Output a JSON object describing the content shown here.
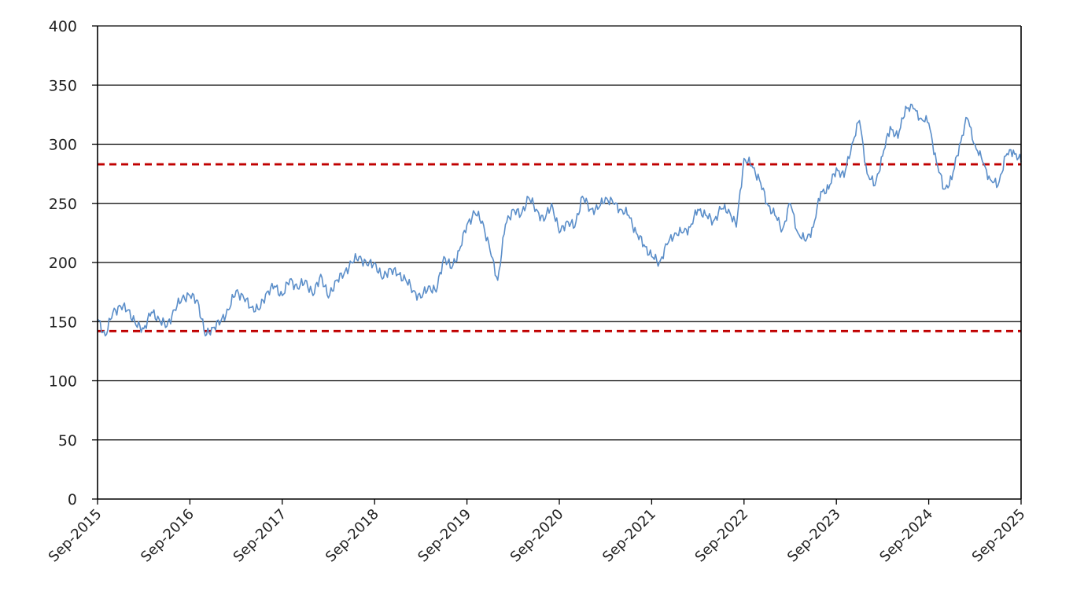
{
  "chart_data": {
    "type": "line",
    "title": "",
    "xlabel": "",
    "ylabel": "",
    "grid": true,
    "legend": "none",
    "ylim": [
      0,
      400
    ],
    "yticks": [
      0,
      50,
      100,
      150,
      200,
      250,
      300,
      350,
      400
    ],
    "ytick_labels": [
      "0",
      "50",
      "100",
      "150",
      "200",
      "250",
      "300",
      "350",
      "400"
    ],
    "xlim": [
      "2015-09",
      "2025-09"
    ],
    "xtick_labels": [
      "Sep-2015",
      "Sep-2016",
      "Sep-2017",
      "Sep-2018",
      "Sep-2019",
      "Sep-2020",
      "Sep-2021",
      "Sep-2022",
      "Sep-2023",
      "Sep-2024",
      "Sep-2025"
    ],
    "colors": {
      "series": "#5b8ec9",
      "reference": "#c00000",
      "grid": "#000000"
    },
    "series": [
      {
        "x": [
          "2015-09",
          "2015-10",
          "2015-11",
          "2015-12",
          "2016-01",
          "2016-02",
          "2016-03",
          "2016-04",
          "2016-05",
          "2016-06",
          "2016-07",
          "2016-08",
          "2016-09",
          "2016-10",
          "2016-11",
          "2016-12",
          "2017-01",
          "2017-02",
          "2017-03",
          "2017-04",
          "2017-05",
          "2017-06",
          "2017-07",
          "2017-08",
          "2017-09",
          "2017-10",
          "2017-11",
          "2017-12",
          "2018-01",
          "2018-02",
          "2018-03",
          "2018-04",
          "2018-05",
          "2018-06",
          "2018-07",
          "2018-08",
          "2018-09",
          "2018-10",
          "2018-11",
          "2018-12",
          "2019-01",
          "2019-02",
          "2019-03",
          "2019-04",
          "2019-05",
          "2019-06",
          "2019-07",
          "2019-08",
          "2019-09",
          "2019-10",
          "2019-11",
          "2019-12",
          "2020-01",
          "2020-02",
          "2020-03",
          "2020-04",
          "2020-05",
          "2020-06",
          "2020-07",
          "2020-08",
          "2020-09",
          "2020-10",
          "2020-11",
          "2020-12",
          "2021-01",
          "2021-02",
          "2021-03",
          "2021-04",
          "2021-05",
          "2021-06",
          "2021-07",
          "2021-08",
          "2021-09",
          "2021-10",
          "2021-11",
          "2021-12",
          "2022-01",
          "2022-02",
          "2022-03",
          "2022-04",
          "2022-05",
          "2022-06",
          "2022-07",
          "2022-08",
          "2022-09",
          "2022-10",
          "2022-11",
          "2022-12",
          "2023-01",
          "2023-02",
          "2023-03",
          "2023-04",
          "2023-05",
          "2023-06",
          "2023-07",
          "2023-08",
          "2023-09",
          "2023-10",
          "2023-11",
          "2023-12",
          "2024-01",
          "2024-02",
          "2024-03",
          "2024-04",
          "2024-05",
          "2024-06",
          "2024-07",
          "2024-08",
          "2024-09",
          "2024-10",
          "2024-11",
          "2024-12",
          "2025-01",
          "2025-02",
          "2025-03",
          "2025-04",
          "2025-05",
          "2025-06",
          "2025-07",
          "2025-08",
          "2025-09"
        ],
        "values": [
          152,
          138,
          158,
          163,
          160,
          147,
          144,
          158,
          152,
          146,
          160,
          170,
          172,
          168,
          138,
          145,
          150,
          160,
          176,
          170,
          162,
          160,
          175,
          180,
          172,
          186,
          178,
          185,
          172,
          190,
          170,
          185,
          190,
          200,
          205,
          198,
          200,
          186,
          195,
          190,
          186,
          176,
          170,
          180,
          175,
          205,
          195,
          210,
          232,
          242,
          235,
          210,
          185,
          232,
          245,
          240,
          255,
          245,
          235,
          250,
          225,
          235,
          230,
          256,
          245,
          245,
          255,
          250,
          245,
          240,
          225,
          215,
          205,
          200,
          215,
          225,
          225,
          230,
          245,
          240,
          235,
          245,
          245,
          230,
          288,
          282,
          270,
          250,
          240,
          228,
          250,
          225,
          218,
          230,
          260,
          262,
          280,
          272,
          300,
          320,
          275,
          265,
          290,
          315,
          305,
          332,
          330,
          322,
          318,
          285,
          262,
          270,
          300,
          322,
          300,
          285,
          270,
          265,
          290,
          295,
          285
        ]
      }
    ],
    "reference_lines": [
      283,
      142
    ]
  }
}
